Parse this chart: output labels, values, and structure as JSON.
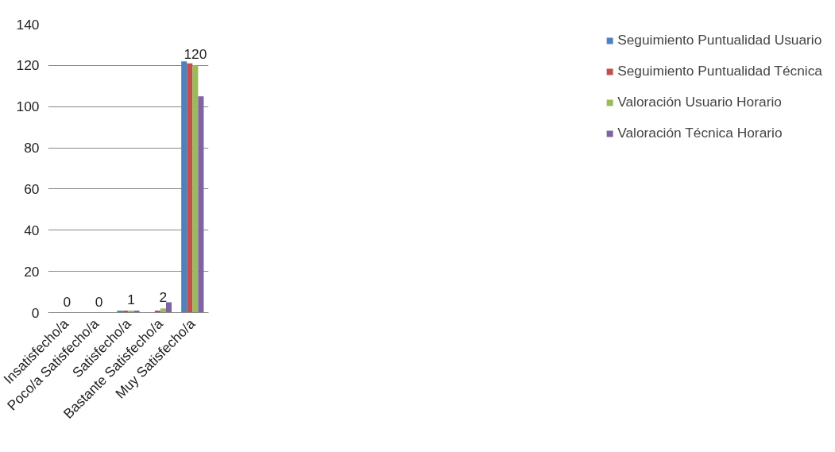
{
  "chart_data": {
    "type": "bar",
    "categories": [
      "Insatisfecho/a",
      "Poco/a Satisfecho/a",
      "Satisfecho/a",
      "Bastante Satisfecho/a",
      "Muy Satisfecho/a"
    ],
    "series": [
      {
        "name": "Seguimiento Puntualidad Usuario",
        "color": "#4f81bd",
        "values": [
          0,
          0,
          1,
          0,
          122
        ]
      },
      {
        "name": "Seguimiento Puntualidad Técnica",
        "color": "#c0504d",
        "values": [
          0,
          0,
          1,
          1,
          121
        ]
      },
      {
        "name": "Valoración Usuario Horario",
        "color": "#9bbb59",
        "values": [
          0,
          0,
          1,
          2,
          120
        ],
        "value_labels": [
          "0",
          "0",
          "1",
          "2",
          "120"
        ]
      },
      {
        "name": "Valoración Técnica Horario",
        "color": "#8064a2",
        "values": [
          0,
          0,
          1,
          5,
          105
        ]
      }
    ],
    "ylim": [
      0,
      140
    ],
    "yticks": [
      0,
      20,
      40,
      60,
      80,
      100,
      120,
      140
    ],
    "grid": "y",
    "legend": "right"
  }
}
